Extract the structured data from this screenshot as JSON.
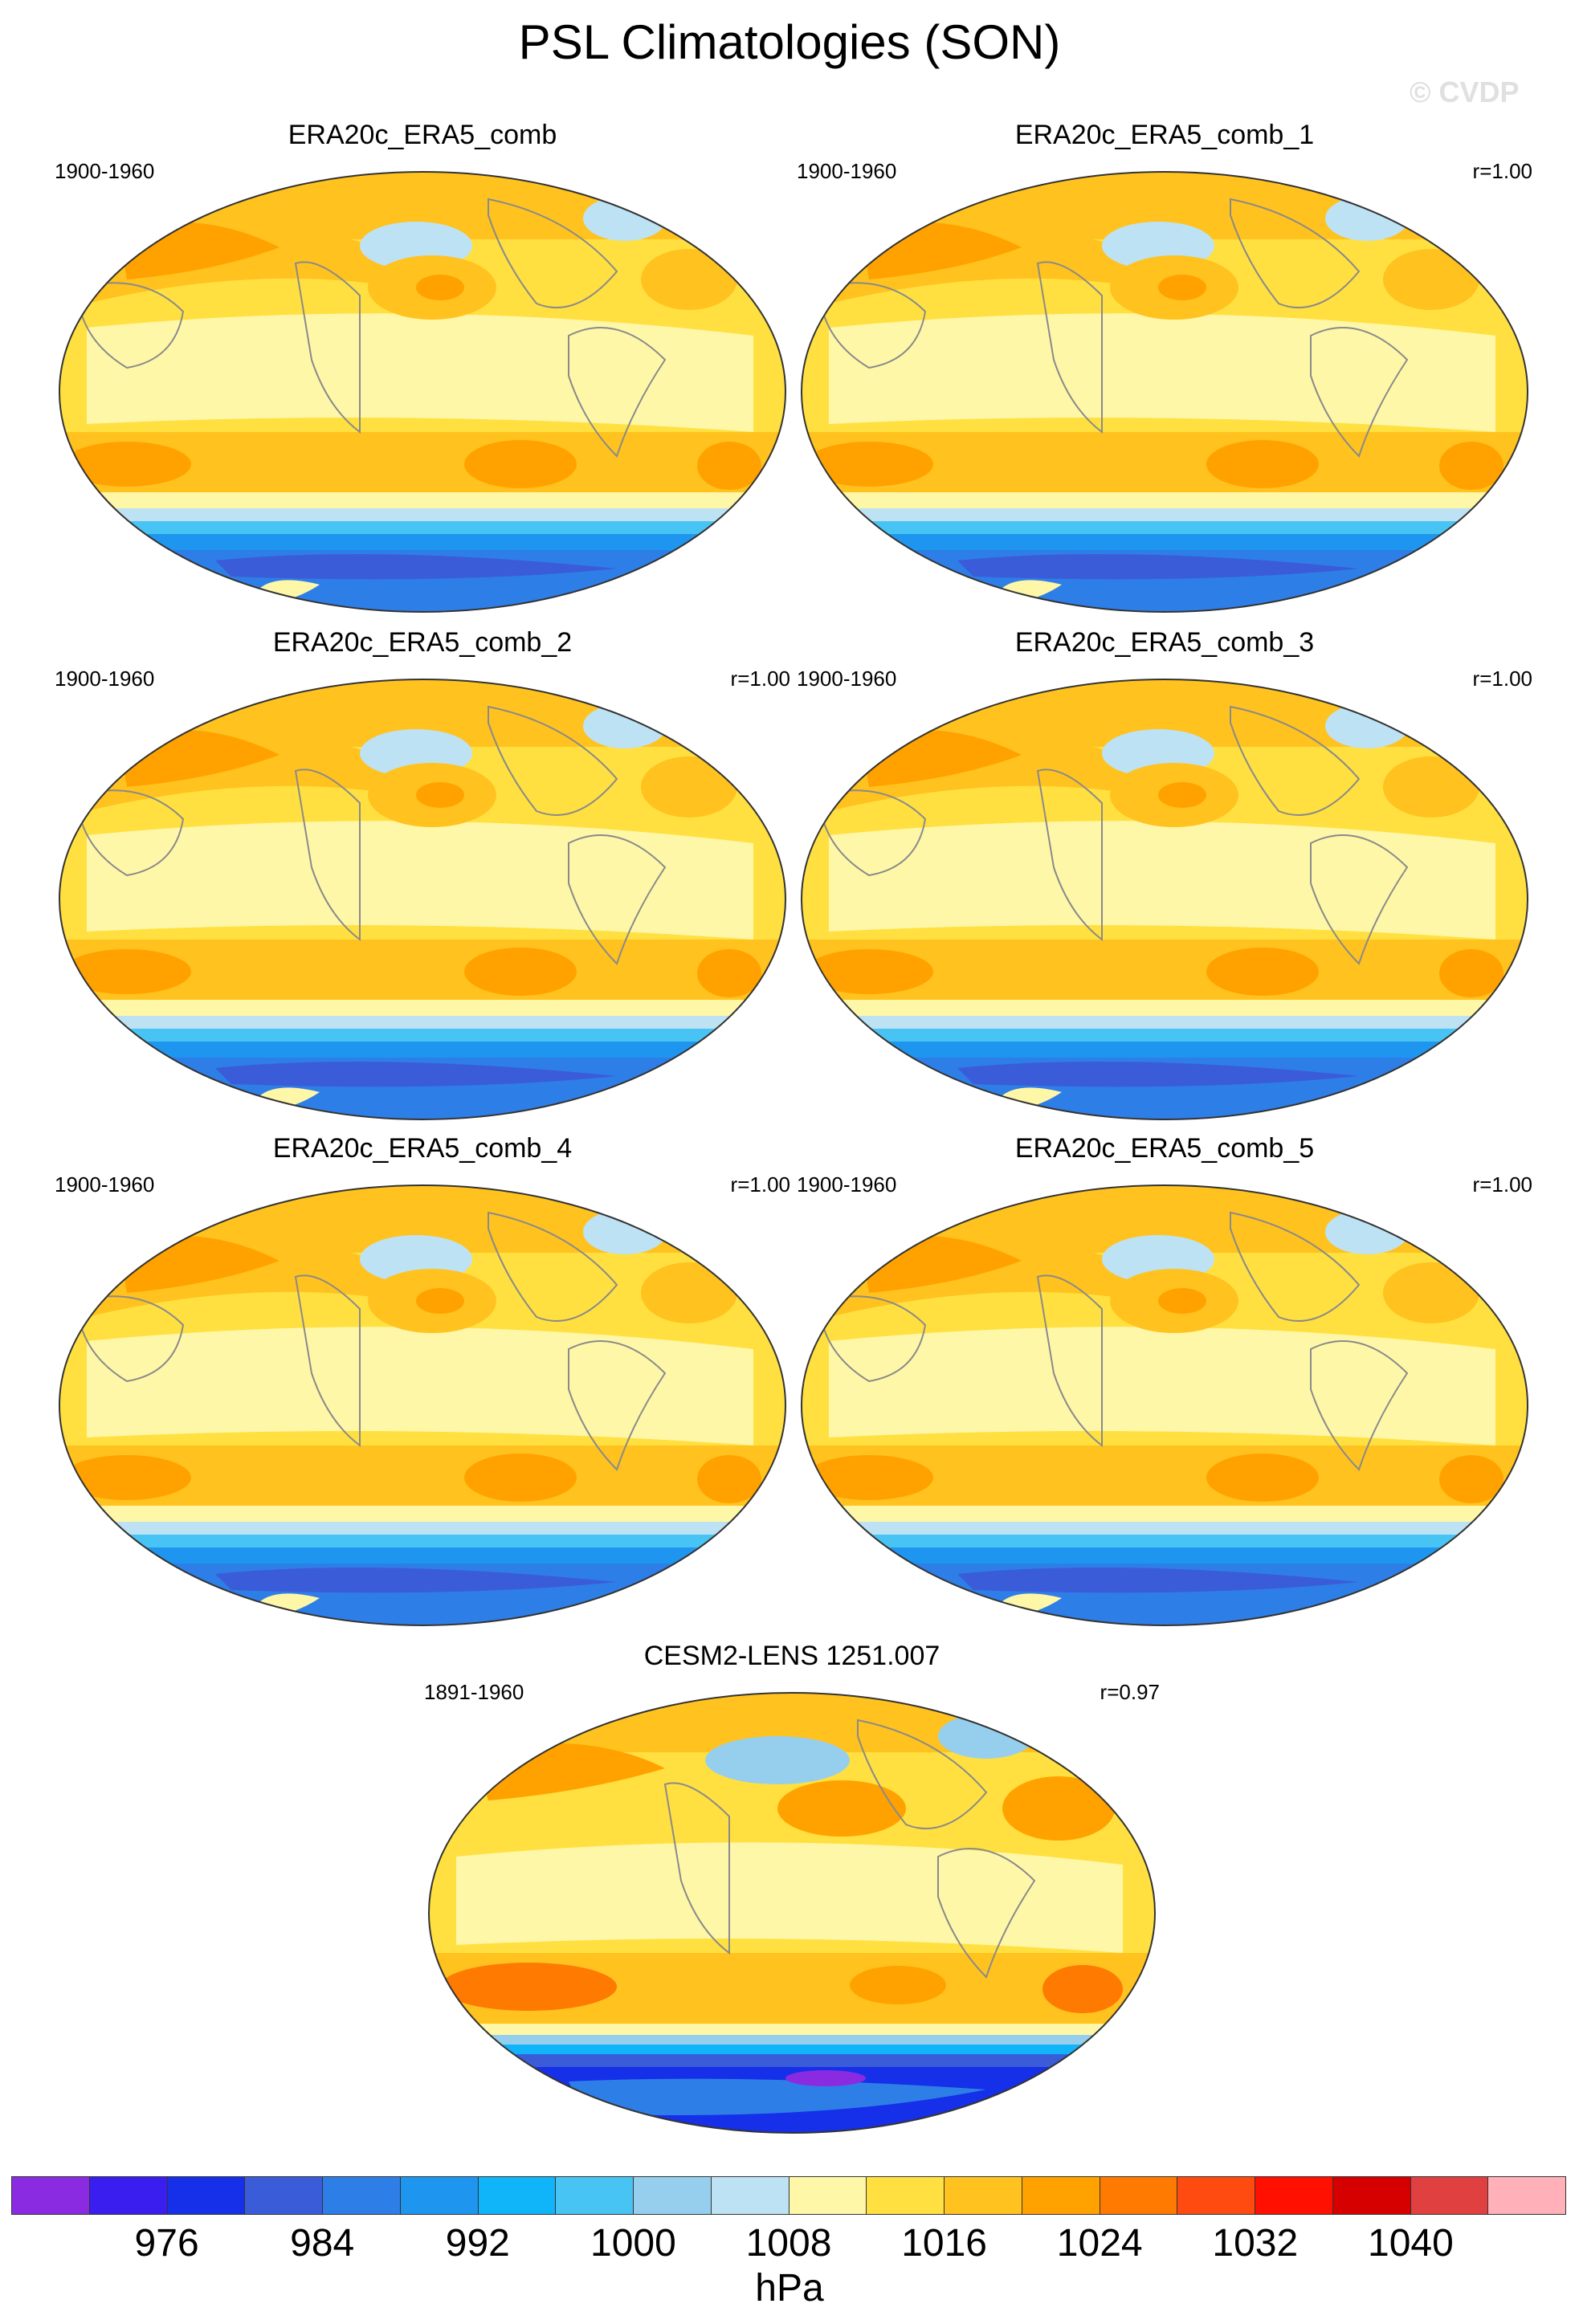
{
  "title": "PSL Climatologies (SON)",
  "watermark": "© CVDP",
  "panels": [
    {
      "title": "ERA20c_ERA5_comb",
      "period": "1900-1960",
      "corr": ""
    },
    {
      "title": "ERA20c_ERA5_comb_1",
      "period": "1900-1960",
      "corr": "r=1.00"
    },
    {
      "title": "ERA20c_ERA5_comb_2",
      "period": "1900-1960",
      "corr": "r=1.00"
    },
    {
      "title": "ERA20c_ERA5_comb_3",
      "period": "1900-1960",
      "corr": "r=1.00"
    },
    {
      "title": "ERA20c_ERA5_comb_4",
      "period": "1900-1960",
      "corr": "r=1.00"
    },
    {
      "title": "ERA20c_ERA5_comb_5",
      "period": "1900-1960",
      "corr": "r=1.00"
    },
    {
      "title": "CESM2-LENS 1251.007",
      "period": "1891-1960",
      "corr": "r=0.97"
    }
  ],
  "colorbar": {
    "unit": "hPa",
    "labels": [
      "976",
      "984",
      "992",
      "1000",
      "1008",
      "1016",
      "1024",
      "1032",
      "1040"
    ],
    "colors": [
      "#8a2be2",
      "#3a1ef0",
      "#1530e8",
      "#3a5cd8",
      "#2e7ee8",
      "#1e96f0",
      "#10b4f8",
      "#48c4f4",
      "#96cfee",
      "#bde2f4",
      "#fff7a8",
      "#ffe040",
      "#ffc21e",
      "#ffa200",
      "#ff7a00",
      "#ff4a10",
      "#ff1000",
      "#d60000",
      "#e04040",
      "#ffb0b8"
    ]
  }
}
